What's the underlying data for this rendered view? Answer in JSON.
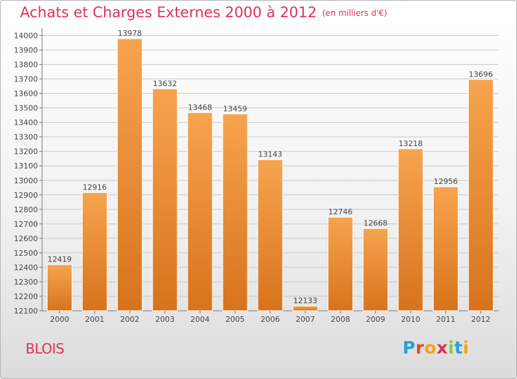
{
  "title": "Achats et Charges Externes 2000 à 2012",
  "subtitle": "(en milliers d'€)",
  "city": "BLOIS",
  "logo": {
    "text": "Proxiti",
    "letters": [
      "P",
      "r",
      "o",
      "x",
      "i",
      "t",
      "i"
    ],
    "colors": [
      "#2a9fd6",
      "#e8452c",
      "#f7a21b",
      "#e0325a",
      "#8cc63f",
      "#2a9fd6",
      "#f7a21b"
    ]
  },
  "colors": {
    "bar_top": "#f7a44f",
    "bar_bottom": "#d8731d",
    "accent": "#e0325a",
    "grid": "#c8c8c8"
  },
  "chart_data": {
    "type": "bar",
    "categories": [
      "2000",
      "2001",
      "2002",
      "2003",
      "2004",
      "2005",
      "2006",
      "2007",
      "2008",
      "2009",
      "2010",
      "2011",
      "2012"
    ],
    "values": [
      12419,
      12916,
      13978,
      13632,
      13468,
      13459,
      13143,
      12133,
      12746,
      12668,
      13218,
      12956,
      13696
    ],
    "yticks": [
      12100,
      12200,
      12300,
      12400,
      12500,
      12600,
      12700,
      12800,
      12900,
      13000,
      13100,
      13200,
      13300,
      13400,
      13500,
      13600,
      13700,
      13800,
      13900,
      14000
    ],
    "ylim": [
      12100,
      14050
    ],
    "grid": true
  }
}
